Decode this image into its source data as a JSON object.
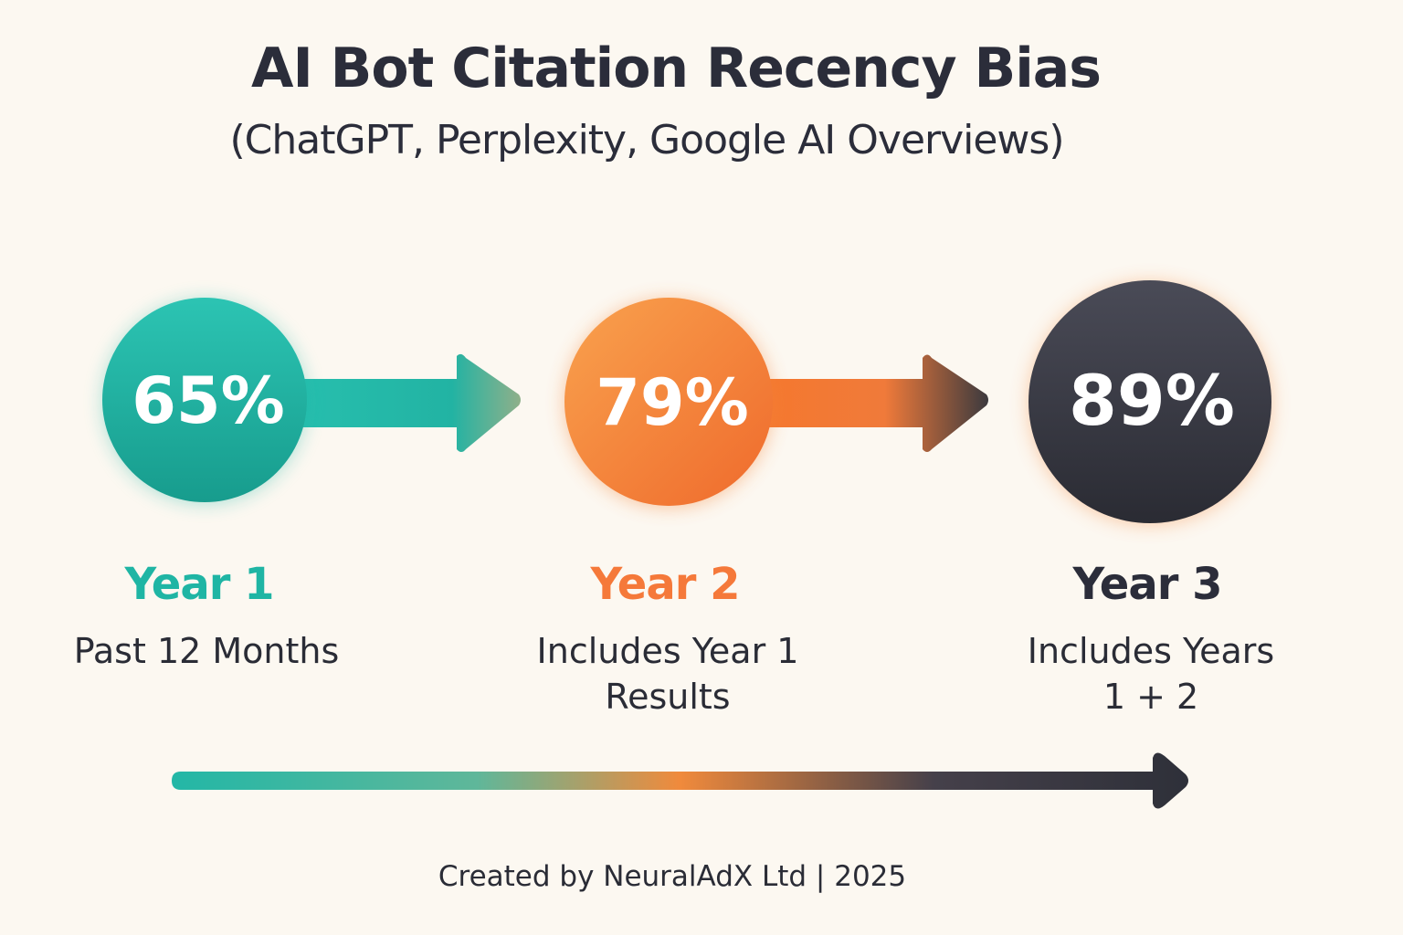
{
  "title": "AI Bot Citation Recency Bias",
  "subtitle": "(ChatGPT, Perplexity, Google AI Overviews)",
  "stages": [
    {
      "value": "65%",
      "label": "Year 1",
      "description": "Past 12 Months",
      "color": "#1fb5a4"
    },
    {
      "value": "79%",
      "label": "Year 2",
      "description": "Includes Year 1 Results",
      "color": "#f5853a"
    },
    {
      "value": "89%",
      "label": "Year 3",
      "description": "Includes Years 1 + 2",
      "color": "#2f3039"
    }
  ],
  "footer": "Created by NeuralAdX Ltd | 2025"
}
